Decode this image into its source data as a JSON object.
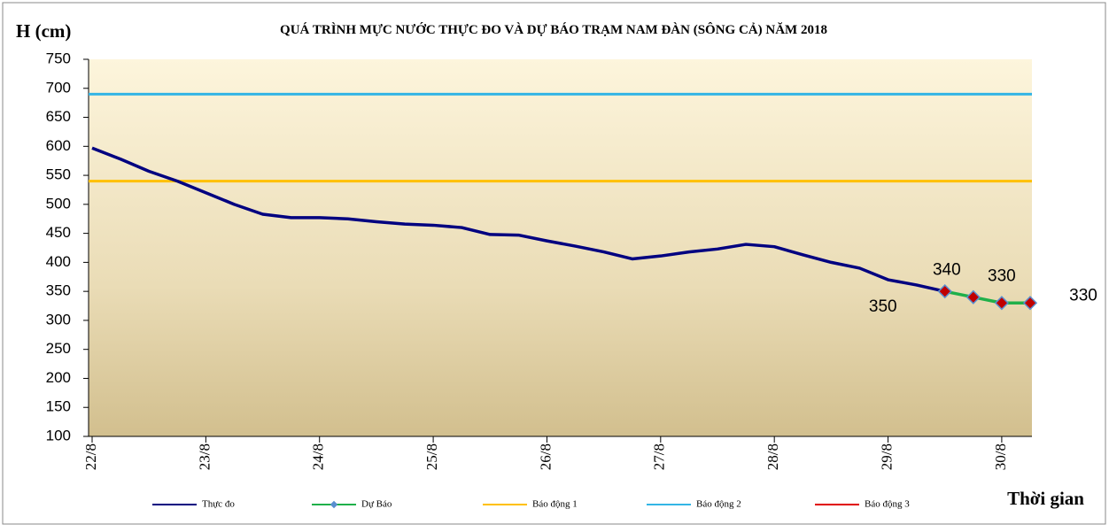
{
  "chart_data": {
    "type": "line",
    "title": "QUÁ TRÌNH MỰC NƯỚC THỰC ĐO VÀ DỰ BÁO TRẠM  NAM  ĐÀN (SÔNG CẢ) NĂM 2018",
    "y_label": "H (cm)",
    "x_label": "Thời gian",
    "xlim": [
      0,
      8.25
    ],
    "xticks": [
      {
        "value": 0,
        "label": "22/8"
      },
      {
        "value": 1,
        "label": "23/8"
      },
      {
        "value": 2,
        "label": "24/8"
      },
      {
        "value": 3,
        "label": "25/8"
      },
      {
        "value": 4,
        "label": "26/8"
      },
      {
        "value": 5,
        "label": "27/8"
      },
      {
        "value": 6,
        "label": "28/8"
      },
      {
        "value": 7,
        "label": "29/8"
      },
      {
        "value": 8,
        "label": "30/8"
      }
    ],
    "ylim": [
      100,
      750
    ],
    "yticks": [
      100,
      150,
      200,
      250,
      300,
      350,
      400,
      450,
      500,
      550,
      600,
      650,
      700,
      750
    ],
    "grid": false,
    "series": [
      {
        "name": "Thực đo",
        "color": "#000080",
        "x": [
          0,
          0.25,
          0.5,
          0.75,
          1,
          1.25,
          1.5,
          1.75,
          2,
          2.25,
          2.5,
          2.75,
          3,
          3.25,
          3.5,
          3.75,
          4,
          4.25,
          4.5,
          4.75,
          5,
          5.25,
          5.5,
          5.75,
          6,
          6.25,
          6.5,
          6.75,
          7,
          7.25,
          7.5
        ],
        "values": [
          597,
          578,
          557,
          540,
          520,
          500,
          483,
          477,
          477,
          475,
          470,
          466,
          464,
          460,
          448,
          447,
          437,
          428,
          418,
          406,
          411,
          418,
          423,
          431,
          427,
          413,
          400,
          390,
          370,
          361,
          350
        ]
      },
      {
        "name": "Dự Báo",
        "color": "#1fb04a",
        "marker_color": "#c00000",
        "x": [
          7.5,
          7.75,
          8,
          8.25
        ],
        "values": [
          350,
          340,
          330,
          330
        ]
      }
    ],
    "alert_lines": [
      {
        "name": "Báo động 1",
        "color": "#ffc000",
        "value": 540
      },
      {
        "name": "Báo động 2",
        "color": "#33b5e5",
        "value": 690
      },
      {
        "name": "Báo động 3",
        "color": "#e00000"
      }
    ]
  }
}
